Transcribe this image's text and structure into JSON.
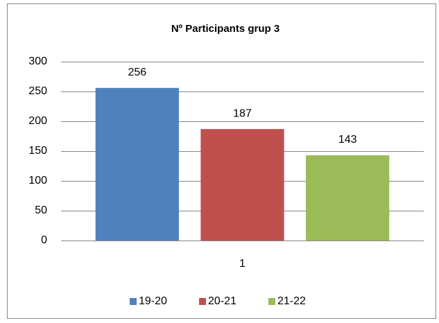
{
  "chart_data": {
    "type": "bar",
    "title": "Nº Participants grup 3",
    "categories": [
      "1"
    ],
    "series": [
      {
        "name": "19-20",
        "color": "#4f81bd",
        "values": [
          256
        ]
      },
      {
        "name": "20-21",
        "color": "#c0504d",
        "values": [
          187
        ]
      },
      {
        "name": "21-22",
        "color": "#9bbb59",
        "values": [
          143
        ]
      }
    ],
    "ylim": [
      0,
      300
    ],
    "yticks": [
      0,
      50,
      100,
      150,
      200,
      250,
      300
    ],
    "grid": true,
    "legend": "bottom",
    "data_labels": true
  }
}
